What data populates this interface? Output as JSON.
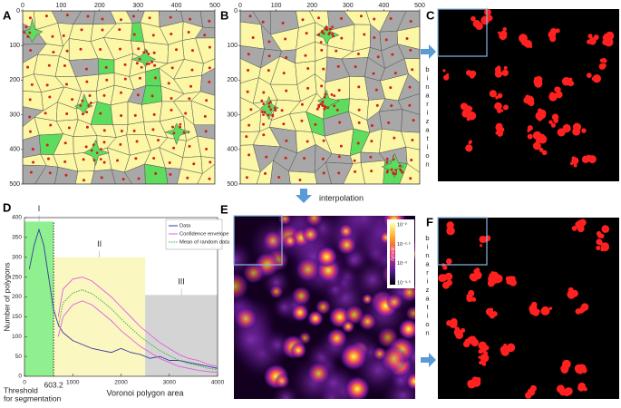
{
  "panels": {
    "a": {
      "label": "A",
      "lim": [
        0,
        500
      ],
      "xticks": [
        0,
        100,
        200,
        300,
        400,
        500
      ],
      "yticks": [
        0,
        100,
        200,
        300,
        400,
        500
      ]
    },
    "b": {
      "label": "B",
      "lim": [
        0,
        500
      ],
      "xticks": [
        0,
        100,
        200,
        300,
        400,
        500
      ],
      "yticks": [
        0,
        100,
        200,
        300,
        400,
        500
      ]
    },
    "c": {
      "label": "C",
      "side_text": "binarization"
    },
    "d": {
      "label": "D"
    },
    "e": {
      "label": "E",
      "arrow_text": "interpolation",
      "colorbar": {
        "title": "density",
        "labels": [
          "10⁻²",
          "10⁻²·⁵",
          "10⁻³",
          "10⁻³·⁵"
        ]
      }
    },
    "f": {
      "label": "F",
      "side_text": "binarization"
    }
  },
  "chart_data": {
    "type": "line",
    "xlabel": "Voronoi polygon area",
    "ylabel": "Number of polygons",
    "xlim": [
      0,
      4000
    ],
    "ylim": [
      0,
      400
    ],
    "xticks": [
      0,
      1000,
      2000,
      3000,
      4000
    ],
    "yticks": [
      0,
      50,
      100,
      150,
      200,
      250,
      300,
      350,
      400
    ],
    "threshold": 603.2,
    "threshold_label": [
      "Threshold",
      "for segmentation"
    ],
    "regions": [
      {
        "label": "I",
        "xlim": [
          0,
          603.2
        ],
        "height": 390,
        "color": "#8ef08e"
      },
      {
        "label": "II",
        "xlim": [
          603.2,
          2500
        ],
        "height": 300,
        "color": "#fbf7c0"
      },
      {
        "label": "III",
        "xlim": [
          2500,
          4000
        ],
        "height": 205,
        "color": "#d4d4d4"
      }
    ],
    "series": [
      {
        "name": "Data",
        "color": "#3a3aa0",
        "style": "solid",
        "x": [
          100,
          200,
          300,
          400,
          500,
          600,
          700,
          800,
          900,
          1000,
          1200,
          1400,
          1600,
          1800,
          2000,
          2200,
          2400,
          2600,
          2800,
          3000,
          3200,
          3400,
          3600,
          3800,
          4000
        ],
        "values": [
          270,
          330,
          370,
          330,
          250,
          170,
          130,
          110,
          100,
          90,
          80,
          70,
          65,
          60,
          70,
          60,
          55,
          45,
          50,
          40,
          40,
          35,
          30,
          25,
          20
        ]
      },
      {
        "name": "Confidence envelope",
        "color": "#e060e0",
        "style": "solid",
        "x": [
          700,
          800,
          1000,
          1200,
          1400,
          1600,
          1800,
          2000,
          2200,
          2400,
          2600,
          2800,
          3000,
          3200,
          3400,
          3600,
          3800,
          4000
        ],
        "values": [
          150,
          220,
          245,
          250,
          240,
          220,
          200,
          175,
          150,
          125,
          105,
          85,
          70,
          55,
          45,
          40,
          30,
          25
        ],
        "lower_values": [
          100,
          150,
          180,
          190,
          180,
          160,
          140,
          115,
          95,
          75,
          60,
          45,
          35,
          25,
          20,
          15,
          12,
          10
        ]
      },
      {
        "name": "Mean of random data",
        "color": "#40b040",
        "style": "dotted",
        "x": [
          700,
          800,
          1000,
          1200,
          1400,
          1600,
          1800,
          2000,
          2200,
          2400,
          2600,
          2800,
          3000,
          3200,
          3400,
          3600,
          3800,
          4000
        ],
        "values": [
          125,
          185,
          210,
          218,
          208,
          190,
          170,
          145,
          122,
          100,
          82,
          65,
          52,
          40,
          32,
          27,
          20,
          17
        ]
      }
    ]
  }
}
